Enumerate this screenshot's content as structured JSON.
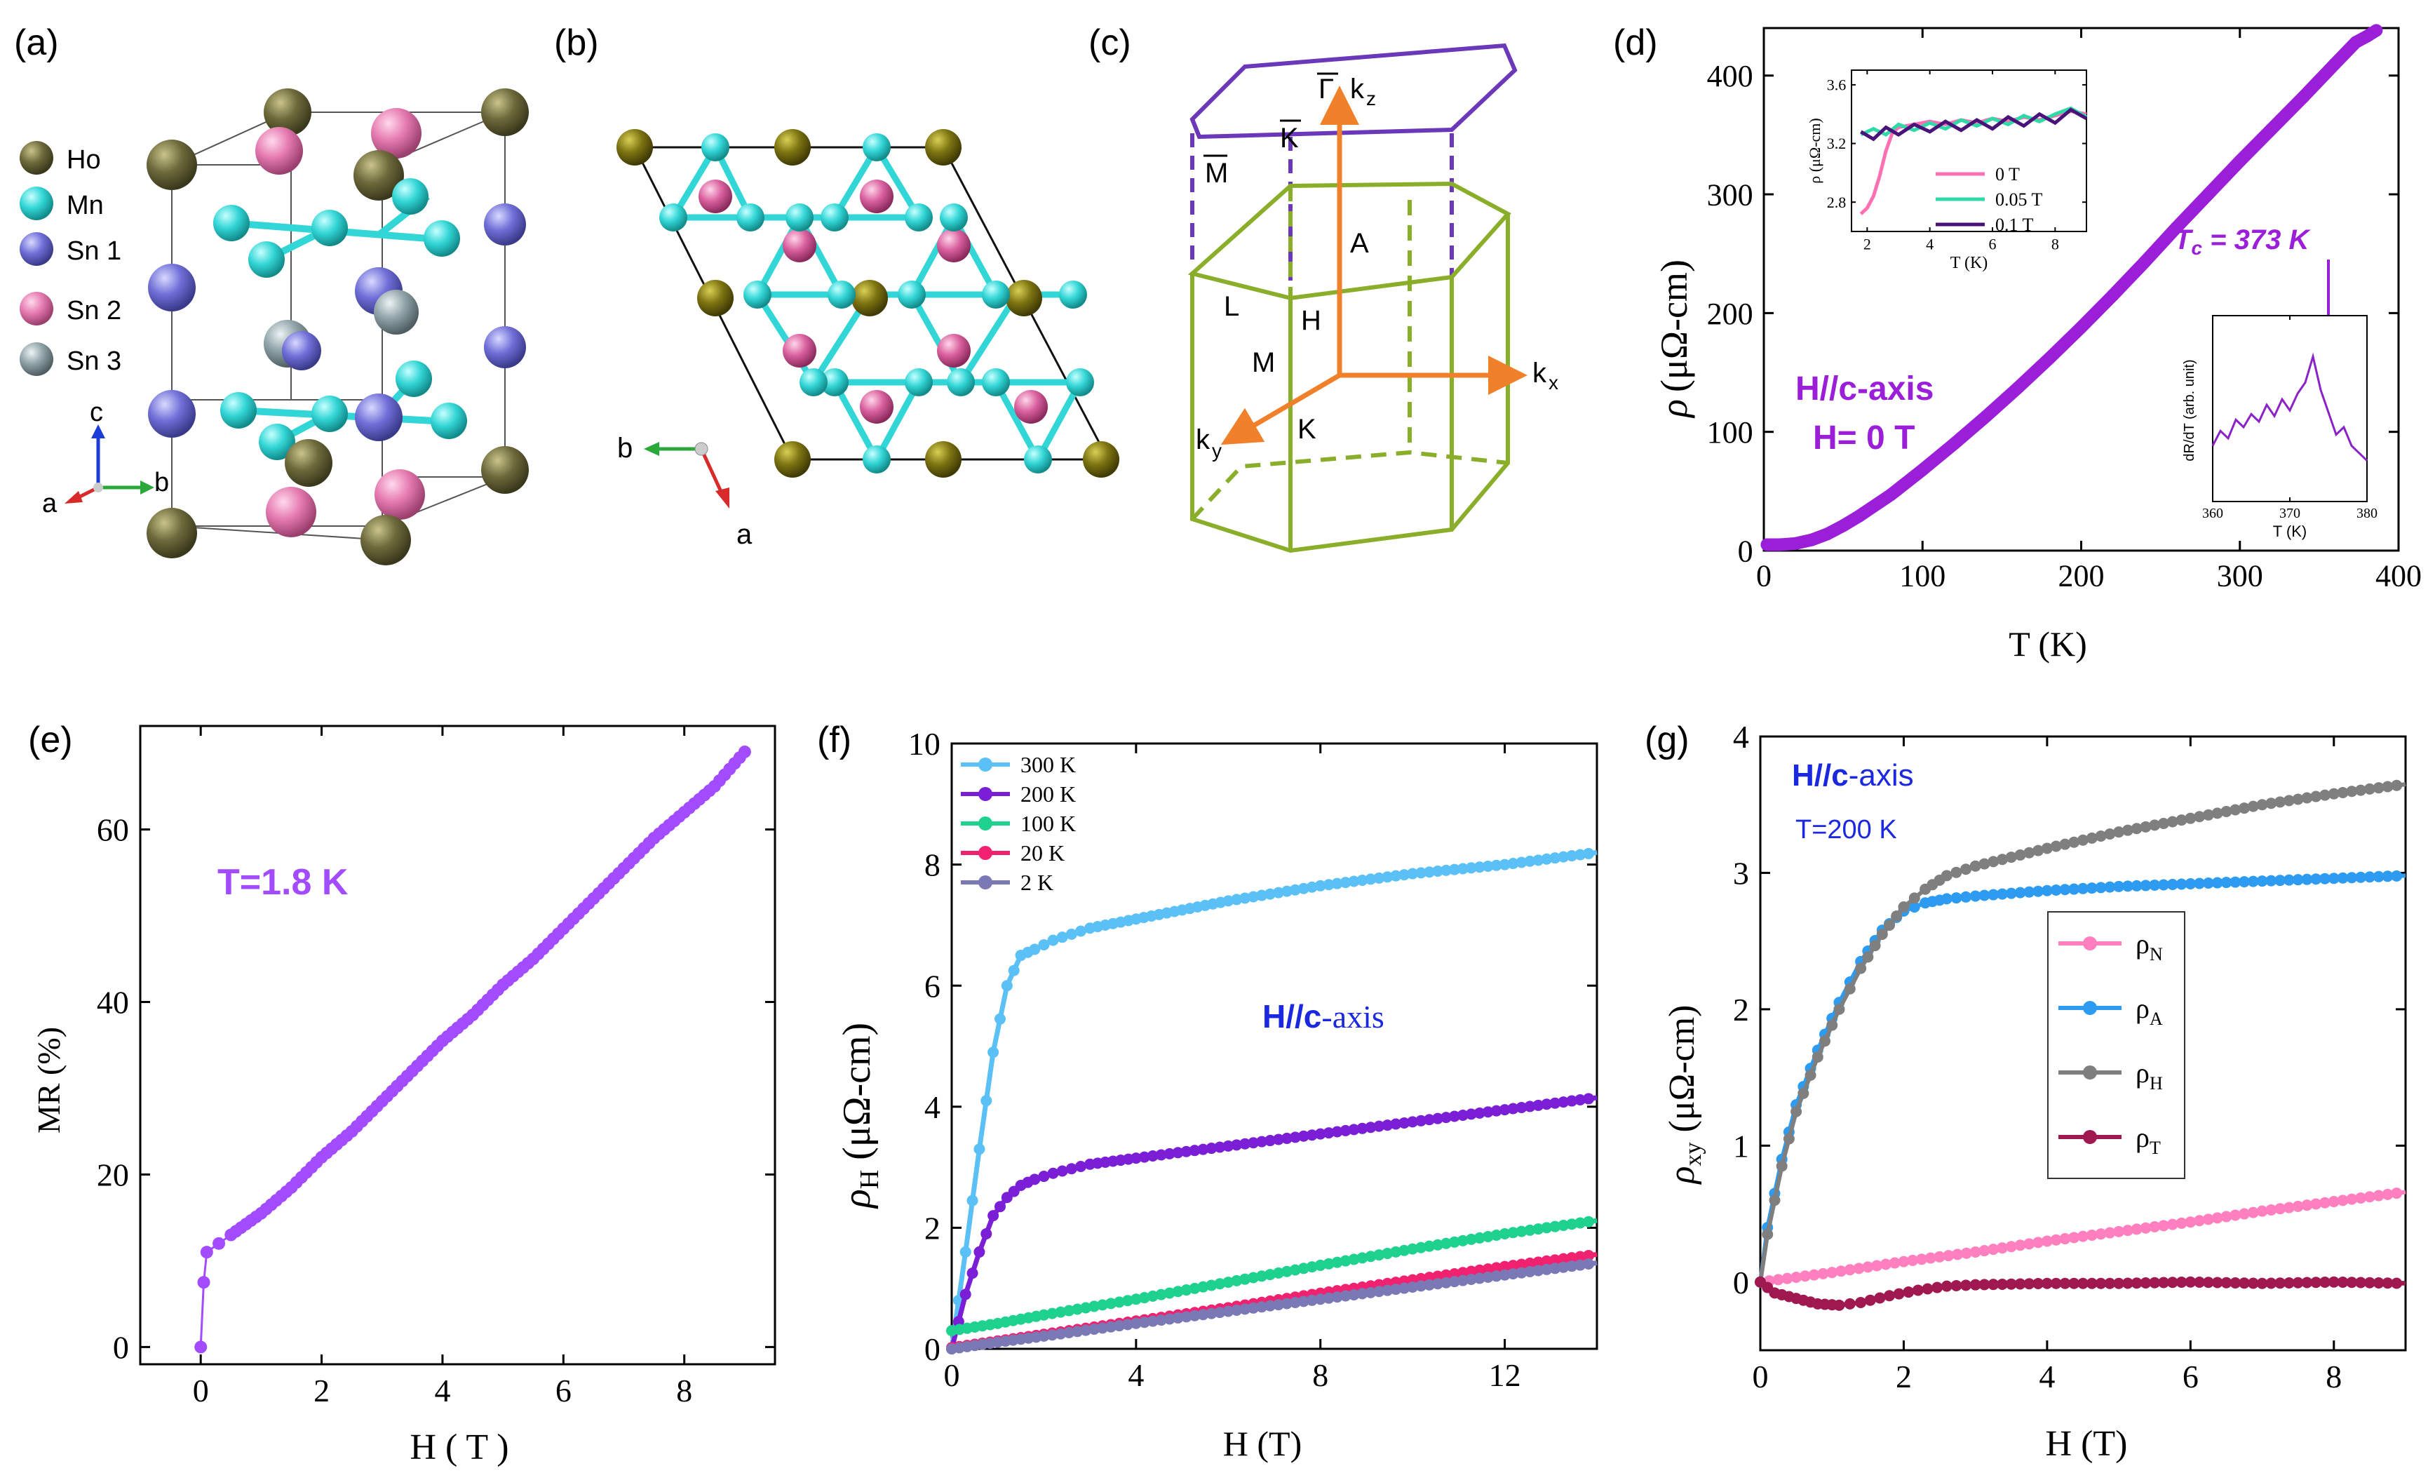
{
  "figure": {
    "panel_labels": [
      "(a)",
      "(b)",
      "(c)",
      "(d)",
      "(e)",
      "(f)",
      "(g)"
    ]
  },
  "panel_a": {
    "legend": [
      {
        "label": "Ho",
        "color": "#6e6a3c"
      },
      {
        "label": "Mn",
        "color": "#33d6d6"
      },
      {
        "label": "Sn 1",
        "color": "#6f6fd8"
      },
      {
        "label": "Sn 2",
        "color": "#e57ab0"
      },
      {
        "label": "Sn 3",
        "color": "#8fa3a8"
      }
    ],
    "axes": {
      "c": "c",
      "a": "a",
      "b": "b"
    }
  },
  "panel_b": {
    "axes": {
      "b": "b",
      "a": "a"
    }
  },
  "panel_c": {
    "labels": {
      "gamma_bar": "Γ",
      "k_bar": "K",
      "m_bar": "M",
      "kz": "k",
      "kz_sub": "z",
      "kx": "k",
      "kx_sub": "x",
      "ky": "k",
      "ky_sub": "y",
      "A": "A",
      "L": "L",
      "H": "H",
      "M": "M",
      "K": "K"
    }
  },
  "chart_data": [
    {
      "id": "d",
      "type": "line",
      "xlabel": "T (K)",
      "ylabel_sym": "ρ",
      "ylabel_unit": "(μΩ-cm)",
      "xlim": [
        0,
        400
      ],
      "ylim": [
        0,
        440
      ],
      "xticks": [
        0,
        100,
        200,
        300,
        400
      ],
      "yticks": [
        0,
        100,
        200,
        300,
        400
      ],
      "annotation_field": "H//c-axis",
      "annotation_h": "H= 0 T",
      "annotation_tc": "T",
      "annotation_tc_sub": "c",
      "annotation_tc_value": " = 373 K",
      "series": [
        {
          "name": "H = 0 T",
          "color": "#9b1fd9",
          "x": [
            2,
            10,
            20,
            30,
            40,
            50,
            60,
            80,
            100,
            120,
            140,
            160,
            180,
            200,
            220,
            240,
            260,
            280,
            300,
            320,
            340,
            360,
            373,
            380,
            386
          ],
          "y": [
            5,
            5,
            6,
            9,
            14,
            21,
            29,
            47,
            68,
            90,
            113,
            137,
            162,
            188,
            215,
            243,
            272,
            300,
            328,
            355,
            382,
            410,
            428,
            433,
            438
          ]
        }
      ],
      "inset_low": {
        "xlabel": "T (K)",
        "ylabel": "ρ (μΩ-cm)",
        "xlim": [
          1.5,
          9
        ],
        "ylim": [
          2.6,
          3.7
        ],
        "xticks": [
          2,
          4,
          6,
          8
        ],
        "yticks": [
          2.8,
          3.2,
          3.6
        ],
        "series": [
          {
            "name": "0 T",
            "color": "#ff6fb4",
            "x": [
              1.8,
              2.0,
              2.2,
              2.4,
              2.6,
              2.8,
              3.0,
              3.5,
              4,
              4.5,
              5,
              5.5,
              6,
              6.5,
              7,
              7.5,
              8,
              8.5,
              9
            ],
            "y": [
              2.72,
              2.76,
              2.84,
              2.98,
              3.15,
              3.27,
              3.31,
              3.33,
              3.35,
              3.33,
              3.36,
              3.34,
              3.37,
              3.35,
              3.38,
              3.36,
              3.39,
              3.42,
              3.4
            ]
          },
          {
            "name": "0.05 T",
            "color": "#2fd9a8",
            "x": [
              1.8,
              2.2,
              2.6,
              3.0,
              3.5,
              4,
              4.5,
              5,
              5.5,
              6,
              6.5,
              7,
              7.5,
              8,
              8.5,
              9
            ],
            "y": [
              3.26,
              3.3,
              3.26,
              3.33,
              3.29,
              3.34,
              3.3,
              3.36,
              3.32,
              3.37,
              3.33,
              3.39,
              3.35,
              3.4,
              3.44,
              3.38
            ]
          },
          {
            "name": "0.1 T",
            "color": "#4a137a",
            "x": [
              1.8,
              2.2,
              2.6,
              3.0,
              3.5,
              4,
              4.5,
              5,
              5.5,
              6,
              6.5,
              7,
              7.5,
              8,
              8.5,
              9
            ],
            "y": [
              3.28,
              3.23,
              3.31,
              3.26,
              3.33,
              3.28,
              3.35,
              3.29,
              3.36,
              3.3,
              3.38,
              3.32,
              3.4,
              3.34,
              3.43,
              3.37
            ]
          }
        ]
      },
      "inset_deriv": {
        "xlabel": "T (K)",
        "ylabel": "dR/dT (arb. unit)",
        "xlim": [
          360,
          380
        ],
        "xticks": [
          360,
          370,
          380
        ],
        "series": [
          {
            "name": "dR/dT",
            "color": "#8a22c8",
            "x": [
              360,
              361,
              362,
              363,
              364,
              365,
              366,
              367,
              368,
              369,
              370,
              371,
              372,
              373,
              374,
              375,
              376,
              377,
              378,
              379,
              380
            ],
            "y": [
              0.3,
              0.38,
              0.34,
              0.44,
              0.4,
              0.47,
              0.43,
              0.52,
              0.46,
              0.55,
              0.49,
              0.58,
              0.64,
              0.78,
              0.6,
              0.48,
              0.36,
              0.4,
              0.3,
              0.26,
              0.22
            ]
          }
        ]
      }
    },
    {
      "id": "e",
      "type": "scatter",
      "xlabel": "H ( T )",
      "ylabel": "MR (%)",
      "xlim": [
        -1,
        9.5
      ],
      "ylim": [
        -2,
        72
      ],
      "xticks": [
        0,
        2,
        4,
        6,
        8
      ],
      "yticks": [
        0,
        20,
        40,
        60
      ],
      "annotation": "T=1.8 K",
      "series": [
        {
          "name": "T=1.8 K",
          "color": "#a24bff",
          "x": [
            0,
            0.05,
            0.1,
            0.3,
            0.5,
            1,
            1.5,
            2,
            2.5,
            3,
            3.5,
            4,
            4.5,
            5,
            5.5,
            6,
            6.5,
            7,
            7.5,
            8,
            8.5,
            9
          ],
          "y": [
            0,
            7.5,
            11,
            12,
            13,
            15.5,
            18.5,
            22,
            25,
            28.5,
            32,
            35.5,
            38.5,
            42,
            45,
            48.5,
            52,
            55.5,
            59,
            62,
            65,
            69
          ]
        }
      ]
    },
    {
      "id": "f",
      "type": "line",
      "xlabel": "H (T)",
      "ylabel_sym": "ρ",
      "ylabel_sub": "H",
      "ylabel_unit": "(μΩ-cm)",
      "xlim": [
        0,
        14
      ],
      "ylim": [
        0,
        10
      ],
      "xticks": [
        0,
        4,
        8,
        12
      ],
      "yticks": [
        0,
        2,
        4,
        6,
        8,
        10
      ],
      "annotation_bold": "H//c",
      "annotation_rest": "-axis",
      "series": [
        {
          "name": "300 K",
          "color": "#5bc0f5",
          "x": [
            0,
            0.3,
            0.6,
            0.9,
            1.2,
            1.5,
            1.8,
            2.2,
            3,
            4,
            5,
            6,
            8,
            10,
            12,
            14
          ],
          "y": [
            0,
            1.6,
            3.3,
            4.9,
            6.0,
            6.5,
            6.6,
            6.75,
            6.95,
            7.1,
            7.25,
            7.4,
            7.65,
            7.85,
            8.0,
            8.2
          ]
        },
        {
          "name": "200 K",
          "color": "#7a1fd6",
          "x": [
            0,
            0.3,
            0.6,
            0.9,
            1.2,
            1.5,
            1.8,
            2.2,
            3,
            4,
            6,
            8,
            10,
            12,
            14
          ],
          "y": [
            0,
            0.9,
            1.6,
            2.2,
            2.5,
            2.7,
            2.8,
            2.9,
            3.05,
            3.15,
            3.35,
            3.55,
            3.75,
            3.95,
            4.15
          ]
        },
        {
          "name": "100 K",
          "color": "#1fd18f",
          "x": [
            0,
            1,
            2,
            4,
            6,
            8,
            10,
            12,
            14
          ],
          "y": [
            0.3,
            0.42,
            0.56,
            0.82,
            1.1,
            1.38,
            1.65,
            1.9,
            2.12
          ]
        },
        {
          "name": "20 K",
          "color": "#f0216f",
          "x": [
            0,
            1,
            2,
            4,
            6,
            8,
            10,
            12,
            14
          ],
          "y": [
            0.02,
            0.13,
            0.24,
            0.46,
            0.68,
            0.92,
            1.14,
            1.36,
            1.56
          ]
        },
        {
          "name": "2 K",
          "color": "#7b78b6",
          "x": [
            0,
            1,
            2,
            4,
            6,
            8,
            10,
            12,
            14
          ],
          "y": [
            0,
            0.11,
            0.21,
            0.42,
            0.62,
            0.82,
            1.02,
            1.22,
            1.42
          ]
        }
      ]
    },
    {
      "id": "g",
      "type": "line",
      "xlabel": "H (T)",
      "ylabel_sym": "ρ",
      "ylabel_sub": "xy",
      "ylabel_unit": "(μΩ-cm)",
      "xlim": [
        0,
        9
      ],
      "ylim": [
        -0.5,
        4
      ],
      "xticks": [
        0,
        2,
        4,
        6,
        8
      ],
      "yticks": [
        0,
        1,
        2,
        3,
        4
      ],
      "annotation_bold": "H//c",
      "annotation_rest": "-axis",
      "annotation_temp": "T=200 K",
      "series": [
        {
          "name": "ρ",
          "sub": "N",
          "color": "#ff7fbf",
          "x": [
            0,
            1,
            2,
            3,
            4,
            5,
            6,
            7,
            8,
            9
          ],
          "y": [
            0,
            0.07,
            0.15,
            0.22,
            0.3,
            0.37,
            0.44,
            0.52,
            0.59,
            0.66
          ]
        },
        {
          "name": "ρ",
          "sub": "A",
          "color": "#2d9cf0",
          "x": [
            0,
            0.1,
            0.3,
            0.5,
            0.8,
            1.1,
            1.4,
            1.7,
            2.0,
            2.3,
            2.6,
            3,
            4,
            5,
            6,
            7,
            8,
            9
          ],
          "y": [
            0,
            0.4,
            0.9,
            1.3,
            1.7,
            2.05,
            2.35,
            2.58,
            2.72,
            2.78,
            2.81,
            2.83,
            2.87,
            2.9,
            2.92,
            2.94,
            2.96,
            2.98
          ]
        },
        {
          "name": "ρ",
          "sub": "H",
          "color": "#7f7f7f",
          "x": [
            0,
            0.1,
            0.3,
            0.5,
            0.8,
            1.1,
            1.4,
            1.7,
            2.0,
            2.3,
            2.6,
            3,
            4,
            5,
            6,
            7,
            8,
            9
          ],
          "y": [
            0,
            0.35,
            0.85,
            1.25,
            1.65,
            2.0,
            2.3,
            2.55,
            2.75,
            2.88,
            2.98,
            3.05,
            3.18,
            3.3,
            3.4,
            3.5,
            3.58,
            3.65
          ]
        },
        {
          "name": "ρ",
          "sub": "T",
          "color": "#a01850",
          "x": [
            0,
            0.2,
            0.5,
            0.8,
            1.1,
            1.4,
            1.8,
            2.2,
            2.6,
            3,
            4,
            5,
            6,
            7,
            8,
            9
          ],
          "y": [
            0,
            -0.08,
            -0.12,
            -0.16,
            -0.17,
            -0.15,
            -0.1,
            -0.06,
            -0.03,
            -0.02,
            -0.01,
            -0.01,
            0.0,
            -0.01,
            0.0,
            -0.01
          ]
        }
      ]
    }
  ]
}
